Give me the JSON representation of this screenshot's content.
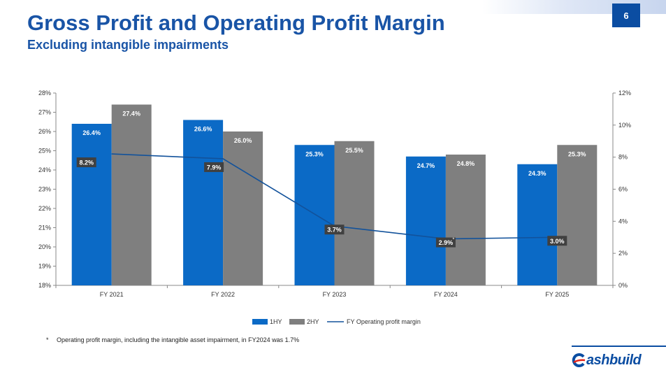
{
  "header": {
    "title": "Gross Profit and Operating Profit Margin",
    "subtitle": "Excluding intangible impairments",
    "page_number": "6"
  },
  "colors": {
    "accent": "#1954a6",
    "badge": "#0b4da2",
    "bar_1hy": "#0b6ac6",
    "bar_2hy": "#7f7f7f",
    "line": "#12529b",
    "label_box": "#404040"
  },
  "chart_data": {
    "type": "bar",
    "categories": [
      "FY 2021",
      "FY 2022",
      "FY 2023",
      "FY 2024",
      "FY 2025"
    ],
    "series": [
      {
        "name": "1HY",
        "type": "bar",
        "axis": "left",
        "values": [
          26.4,
          26.6,
          25.3,
          24.7,
          24.3
        ],
        "labels": [
          "26.4%",
          "26.6%",
          "25.3%",
          "24.7%",
          "24.3%"
        ]
      },
      {
        "name": "2HY",
        "type": "bar",
        "axis": "left",
        "values": [
          27.4,
          26.0,
          25.5,
          24.8,
          25.3
        ],
        "labels": [
          "27.4%",
          "26.0%",
          "25.5%",
          "24.8%",
          "25.3%"
        ]
      },
      {
        "name": "FY Operating profit margin",
        "type": "line",
        "axis": "right",
        "values": [
          8.2,
          7.9,
          3.7,
          2.9,
          3.0
        ],
        "labels": [
          "8.2%",
          "7.9%",
          "3.7%",
          "2.9%",
          "3.0%"
        ]
      }
    ],
    "y_left": {
      "min": 18,
      "max": 28,
      "ticks": [
        "18%",
        "19%",
        "20%",
        "21%",
        "22%",
        "23%",
        "24%",
        "25%",
        "26%",
        "27%",
        "28%"
      ]
    },
    "y_right": {
      "min": 0,
      "max": 12,
      "ticks": [
        "0%",
        "2%",
        "4%",
        "6%",
        "8%",
        "10%",
        "12%"
      ]
    },
    "annotation_marker": "*",
    "grid": false,
    "legend_position": "bottom"
  },
  "footnote": {
    "marker": "*",
    "text": "Operating profit margin, including the intangible asset impairment, in FY2024 was 1.7%"
  },
  "logo": {
    "text": "ashbuild"
  }
}
